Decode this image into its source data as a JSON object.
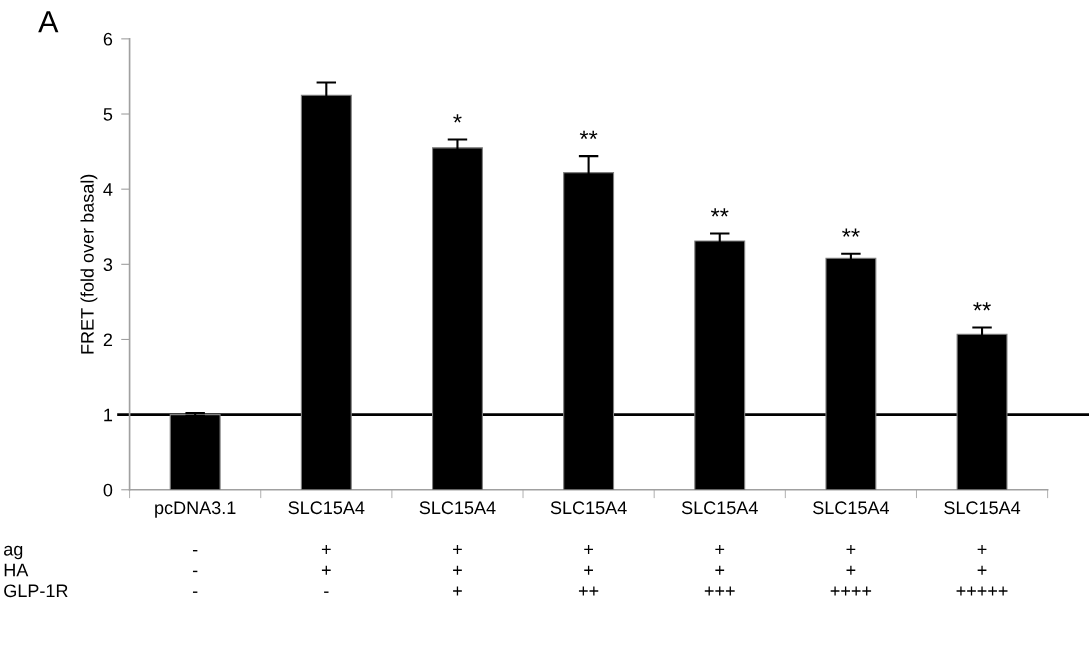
{
  "chart_data": {
    "type": "bar",
    "title": "A",
    "ylabel": "FRET (fold over basal)",
    "categories": [
      "pcDNA3.1\n\n-\n-\n-",
      "SLC15A4\n\n+\n+\n-",
      "SLC15A4\n\n+\n+\n+",
      "SLC15A4\n\n+\n+\n++",
      "SLC15A4\n\n+\n+\n+++",
      "SLC15A4\n\n+\n+\n++++",
      "SLC15A4\n\n+\n+\n+++++"
    ],
    "values": [
      1.0,
      5.25,
      4.55,
      4.22,
      3.31,
      3.08,
      2.07
    ],
    "errors": [
      0.02,
      0.17,
      0.11,
      0.22,
      0.1,
      0.06,
      0.09
    ],
    "value_labels": [
      null,
      null,
      "*",
      "**",
      "**",
      "**",
      "**"
    ],
    "color": "#000000",
    "ylim": [
      0,
      6
    ],
    "yticks": [
      0,
      1,
      2,
      3,
      4,
      5,
      6
    ],
    "ref_lines": [
      {
        "axis": "y",
        "value": 1,
        "color": "#000000"
      }
    ],
    "annotations": [
      "ag",
      "HA",
      "GLP-1R"
    ],
    "grid": false,
    "legend": false
  }
}
